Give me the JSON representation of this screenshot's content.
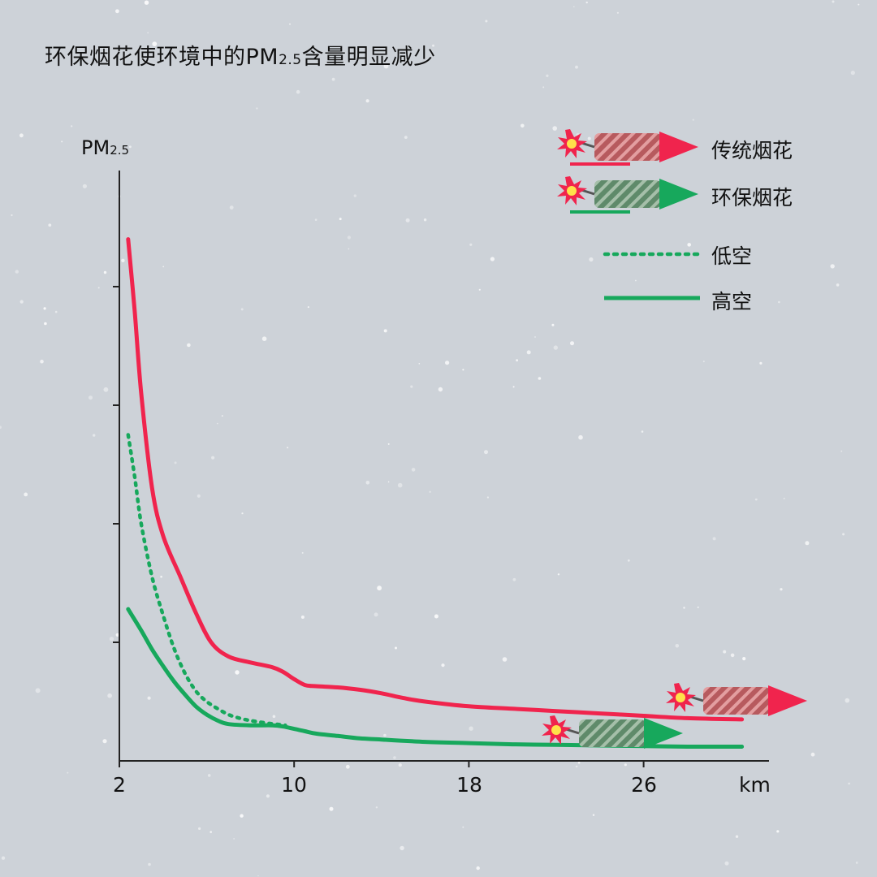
{
  "title": {
    "main": "环保烟花使环境中的PM",
    "sub": "2.5",
    "tail": "含量明显减少"
  },
  "colors": {
    "background": "#cdd2d8",
    "traditional": "#f0244d",
    "eco": "#17a85c",
    "axis": "#222222"
  },
  "chart_data": {
    "type": "line",
    "title": "环保烟花使环境中的PM2.5含量明显减少",
    "xlabel": "km",
    "ylabel": "PM2.5",
    "xlim": [
      2,
      31
    ],
    "ylim": [
      0,
      50
    ],
    "x_ticks": [
      "2",
      "10",
      "18",
      "26"
    ],
    "y_ticks": [
      10,
      20,
      30,
      40
    ],
    "legend": {
      "placement": "top-right",
      "items": [
        {
          "label": "传统烟花",
          "color": "#f0244d",
          "icon": "firework-rocket-red-icon"
        },
        {
          "label": "环保烟花",
          "color": "#17a85c",
          "icon": "firework-rocket-green-icon"
        },
        {
          "label": "低空",
          "style": "dotted"
        },
        {
          "label": "高空",
          "style": "solid"
        }
      ]
    },
    "series": [
      {
        "name": "传统烟花",
        "color": "#f0244d",
        "style": "solid",
        "points": [
          [
            2.4,
            44
          ],
          [
            2.7,
            38
          ],
          [
            3.0,
            31
          ],
          [
            3.5,
            23
          ],
          [
            4.0,
            19
          ],
          [
            4.8,
            15.5
          ],
          [
            5.5,
            12.5
          ],
          [
            6.2,
            10
          ],
          [
            7.0,
            8.8
          ],
          [
            8.0,
            8.3
          ],
          [
            9.0,
            7.9
          ],
          [
            9.5,
            7.5
          ],
          [
            10.0,
            6.9
          ],
          [
            10.5,
            6.4
          ],
          [
            11.0,
            6.3
          ],
          [
            12.0,
            6.2
          ],
          [
            13.0,
            6.0
          ],
          [
            14.0,
            5.7
          ],
          [
            15.0,
            5.3
          ],
          [
            16.0,
            5.0
          ],
          [
            18.0,
            4.6
          ],
          [
            20.0,
            4.4
          ],
          [
            22.0,
            4.2
          ],
          [
            24.0,
            4.0
          ],
          [
            26.0,
            3.8
          ],
          [
            28.0,
            3.6
          ],
          [
            30.5,
            3.5
          ]
        ]
      },
      {
        "name": "环保烟花",
        "color": "#17a85c",
        "style": "dotted",
        "points": [
          [
            2.4,
            27.5
          ],
          [
            2.7,
            24
          ],
          [
            3.0,
            20
          ],
          [
            3.5,
            15.5
          ],
          [
            4.0,
            12.3
          ],
          [
            4.5,
            9.5
          ],
          [
            5.0,
            7.4
          ],
          [
            5.5,
            5.9
          ],
          [
            6.0,
            5.0
          ],
          [
            6.5,
            4.4
          ],
          [
            7.0,
            3.9
          ],
          [
            7.5,
            3.6
          ],
          [
            8.0,
            3.4
          ],
          [
            8.7,
            3.2
          ],
          [
            9.6,
            3.0
          ]
        ]
      },
      {
        "name": "环保烟花",
        "color": "#17a85c",
        "style": "solid",
        "points": [
          [
            2.4,
            12.8
          ],
          [
            3.0,
            11.0
          ],
          [
            3.5,
            9.4
          ],
          [
            4.0,
            8.0
          ],
          [
            4.5,
            6.7
          ],
          [
            5.0,
            5.6
          ],
          [
            5.5,
            4.6
          ],
          [
            6.0,
            3.9
          ],
          [
            6.5,
            3.4
          ],
          [
            7.0,
            3.1
          ],
          [
            8.0,
            3.0
          ],
          [
            9.0,
            3.0
          ],
          [
            9.5,
            2.9
          ],
          [
            10.0,
            2.7
          ],
          [
            10.5,
            2.5
          ],
          [
            11.0,
            2.3
          ],
          [
            12.0,
            2.1
          ],
          [
            13.0,
            1.9
          ],
          [
            14.0,
            1.8
          ],
          [
            16.0,
            1.6
          ],
          [
            18.0,
            1.5
          ],
          [
            20.0,
            1.4
          ],
          [
            22.0,
            1.35
          ],
          [
            24.0,
            1.3
          ],
          [
            26.0,
            1.25
          ],
          [
            28.0,
            1.2
          ],
          [
            30.5,
            1.2
          ]
        ]
      }
    ]
  }
}
